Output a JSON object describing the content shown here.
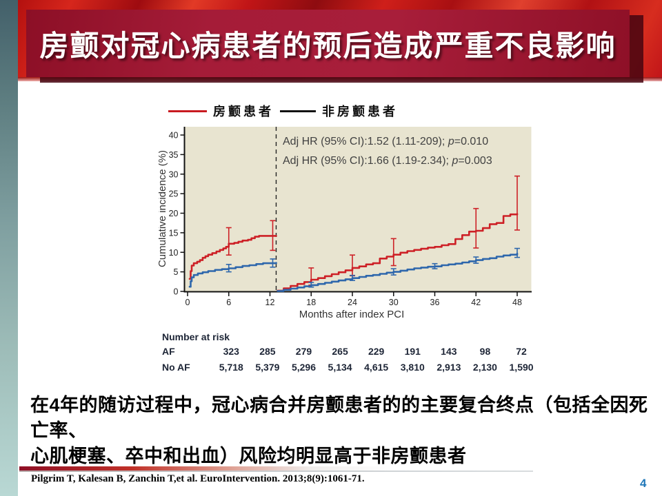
{
  "slide": {
    "title": "房颤对冠心病患者的预后造成严重不良影响",
    "body_lines": [
      "在4年的随访过程中，冠心病合并房颤患者的的主要复合终点（包括全因死亡率、",
      "心肌梗塞、卒中和出血）风险均明显高于非房颤患者"
    ],
    "citation": "Pilgrim T, Kalesan B, Zanchin T,et al. EuroIntervention. 2013;8(9):1061-71.",
    "page_number": "4"
  },
  "theme": {
    "banner_red": "#9e1632",
    "texture_red": "#c41a16",
    "page_number_blue": "#1f77b8",
    "plot_background": "#e8e4d0",
    "af_color": "#cd2026",
    "noaf_color": "#2e67ac"
  },
  "legend": {
    "af_label": "房颤患者",
    "af_swatch_color": "#c81a20",
    "noaf_label": "非房颤患者",
    "noaf_swatch_color": "#111111"
  },
  "annotations": [
    {
      "prefix": "Adj HR (95% CI):1.52 (1.11-209); ",
      "p": "p",
      "value": "=0.010"
    },
    {
      "prefix": "Adj HR (95% CI):1.66 (1.19-2.34); ",
      "p": "p",
      "value": "=0.003"
    }
  ],
  "chart_data": {
    "type": "line",
    "subtype": "kaplan-meier cumulative incidence, landmark analysis",
    "title": "",
    "xlabel": "Months after index PCI",
    "ylabel": "Cumulative incidence (%)",
    "xlim": [
      0,
      48
    ],
    "ylim": [
      0,
      40
    ],
    "xticks": [
      0,
      6,
      12,
      18,
      24,
      30,
      36,
      42,
      48
    ],
    "yticks": [
      0,
      5,
      10,
      15,
      20,
      25,
      30,
      35,
      40
    ],
    "grid": false,
    "legend_position": "top",
    "landmark_x": 12.9,
    "series": [
      {
        "name": "房颤患者 (AF)",
        "color": "#cd2026",
        "segments": [
          [
            [
              0.3,
              3.2
            ],
            [
              0.45,
              5.2
            ],
            [
              0.6,
              6.6
            ],
            [
              0.9,
              7.2
            ],
            [
              1.4,
              7.6
            ],
            [
              1.8,
              8.0
            ],
            [
              2.2,
              8.6
            ],
            [
              2.6,
              9.0
            ],
            [
              3.0,
              9.4
            ],
            [
              3.6,
              9.8
            ],
            [
              4.2,
              10.2
            ],
            [
              4.7,
              10.6
            ],
            [
              5.2,
              11.0
            ],
            [
              5.6,
              11.4
            ],
            [
              6.0,
              12.2
            ],
            [
              6.8,
              12.4
            ],
            [
              7.4,
              12.7
            ],
            [
              8.0,
              13.0
            ],
            [
              8.8,
              13.2
            ],
            [
              9.3,
              13.6
            ],
            [
              9.8,
              14.0
            ],
            [
              10.4,
              14.2
            ],
            [
              12.9,
              14.2
            ]
          ],
          [
            [
              13.1,
              0.2
            ],
            [
              14,
              0.8
            ],
            [
              15,
              1.4
            ],
            [
              16,
              1.9
            ],
            [
              17,
              2.4
            ],
            [
              18,
              3.0
            ],
            [
              19,
              3.4
            ],
            [
              20,
              3.9
            ],
            [
              21,
              4.4
            ],
            [
              22,
              4.9
            ],
            [
              23,
              5.4
            ],
            [
              24,
              6.0
            ],
            [
              25,
              6.4
            ],
            [
              26,
              6.9
            ],
            [
              27,
              7.2
            ],
            [
              28,
              8.4
            ],
            [
              29,
              8.9
            ],
            [
              30,
              9.4
            ],
            [
              31,
              9.9
            ],
            [
              32,
              10.3
            ],
            [
              33,
              10.6
            ],
            [
              34,
              10.9
            ],
            [
              35,
              11.2
            ],
            [
              36,
              11.4
            ],
            [
              37,
              11.8
            ],
            [
              38,
              12.1
            ],
            [
              39,
              13.4
            ],
            [
              40,
              14.4
            ],
            [
              41,
              15.3
            ],
            [
              42,
              15.5
            ],
            [
              43,
              16.2
            ],
            [
              44,
              17.2
            ],
            [
              45,
              17.5
            ],
            [
              46,
              19.3
            ],
            [
              47,
              19.7
            ],
            [
              48,
              19.8
            ]
          ]
        ],
        "error_bars": [
          {
            "x": 6,
            "y": 12.2,
            "lo": 9.3,
            "hi": 16.3
          },
          {
            "x": 12.4,
            "y": 14.2,
            "lo": 10.5,
            "hi": 18.1
          },
          {
            "x": 18,
            "y": 3.0,
            "lo": 1.6,
            "hi": 6.0
          },
          {
            "x": 24,
            "y": 6.0,
            "lo": 4.0,
            "hi": 9.3
          },
          {
            "x": 30,
            "y": 9.4,
            "lo": 6.6,
            "hi": 13.5
          },
          {
            "x": 42,
            "y": 15.5,
            "lo": 11.1,
            "hi": 21.2
          },
          {
            "x": 48,
            "y": 19.8,
            "lo": 15.7,
            "hi": 29.5
          }
        ]
      },
      {
        "name": "非房颤患者 (No AF)",
        "color": "#2e67ac",
        "segments": [
          [
            [
              0.3,
              1.2
            ],
            [
              0.45,
              2.6
            ],
            [
              0.6,
              3.6
            ],
            [
              0.9,
              4.2
            ],
            [
              1.5,
              4.6
            ],
            [
              2.2,
              4.9
            ],
            [
              3.0,
              5.2
            ],
            [
              4.0,
              5.5
            ],
            [
              5.0,
              5.7
            ],
            [
              6.0,
              5.9
            ],
            [
              7.0,
              6.2
            ],
            [
              8.0,
              6.5
            ],
            [
              9.0,
              6.7
            ],
            [
              10.0,
              7.0
            ],
            [
              11.0,
              7.2
            ],
            [
              12.9,
              7.3
            ]
          ],
          [
            [
              13.1,
              0.1
            ],
            [
              14,
              0.4
            ],
            [
              15,
              0.7
            ],
            [
              16,
              1.0
            ],
            [
              17,
              1.3
            ],
            [
              18,
              1.6
            ],
            [
              19,
              1.9
            ],
            [
              20,
              2.2
            ],
            [
              21,
              2.5
            ],
            [
              22,
              2.8
            ],
            [
              23,
              3.1
            ],
            [
              24,
              3.4
            ],
            [
              25,
              3.7
            ],
            [
              26,
              4.0
            ],
            [
              27,
              4.2
            ],
            [
              28,
              4.5
            ],
            [
              29,
              4.8
            ],
            [
              30,
              5.0
            ],
            [
              31,
              5.3
            ],
            [
              32,
              5.6
            ],
            [
              33,
              5.9
            ],
            [
              34,
              6.1
            ],
            [
              35,
              6.3
            ],
            [
              36,
              6.4
            ],
            [
              37,
              6.7
            ],
            [
              38,
              6.9
            ],
            [
              39,
              7.1
            ],
            [
              40,
              7.4
            ],
            [
              41,
              7.7
            ],
            [
              42,
              8.0
            ],
            [
              43,
              8.3
            ],
            [
              44,
              8.5
            ],
            [
              45,
              8.9
            ],
            [
              46,
              9.2
            ],
            [
              47,
              9.4
            ],
            [
              48,
              9.7
            ]
          ]
        ],
        "error_bars": [
          {
            "x": 6,
            "y": 5.9,
            "lo": 5.0,
            "hi": 6.9
          },
          {
            "x": 12.4,
            "y": 7.2,
            "lo": 6.2,
            "hi": 8.3
          },
          {
            "x": 18,
            "y": 1.6,
            "lo": 1.1,
            "hi": 2.3
          },
          {
            "x": 24,
            "y": 3.4,
            "lo": 2.8,
            "hi": 4.1
          },
          {
            "x": 30,
            "y": 5.0,
            "lo": 4.2,
            "hi": 5.8
          },
          {
            "x": 36,
            "y": 6.4,
            "lo": 5.8,
            "hi": 7.1
          },
          {
            "x": 42,
            "y": 8.0,
            "lo": 7.2,
            "hi": 8.8
          },
          {
            "x": 48,
            "y": 9.7,
            "lo": 8.7,
            "hi": 11.0
          }
        ]
      }
    ],
    "number_at_risk": {
      "label": "Number at risk",
      "rows": [
        {
          "name": "AF",
          "values": [
            "323",
            "285",
            "279",
            "265",
            "229",
            "191",
            "143",
            "98",
            "72"
          ]
        },
        {
          "name": "No AF",
          "values": [
            "5,718",
            "5,379",
            "5,296",
            "5,134",
            "4,615",
            "3,810",
            "2,913",
            "2,130",
            "1,590"
          ]
        }
      ]
    }
  }
}
